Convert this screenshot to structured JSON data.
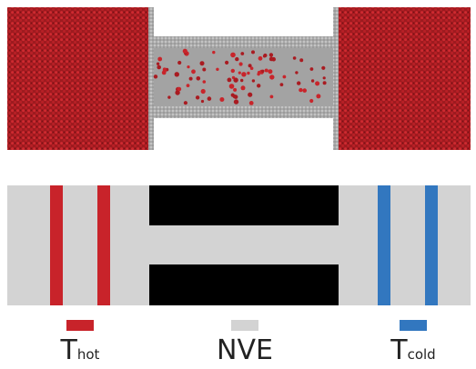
{
  "colors": {
    "reservoir": "#b01c22",
    "channel_wall": "#a8a8a8",
    "channel_dark": "#8a8a8a",
    "fluid_region": "#d3d3d3",
    "solid_region": "#000000",
    "hot": "#c8232a",
    "cold": "#3277bf",
    "text": "#222222"
  },
  "legend": {
    "hot": {
      "main": "T",
      "sub": "hot",
      "color_key": "hot"
    },
    "nve": {
      "main": "NVE",
      "color_key": "fluid_region"
    },
    "cold": {
      "main": "T",
      "sub": "cold",
      "color_key": "cold"
    }
  }
}
